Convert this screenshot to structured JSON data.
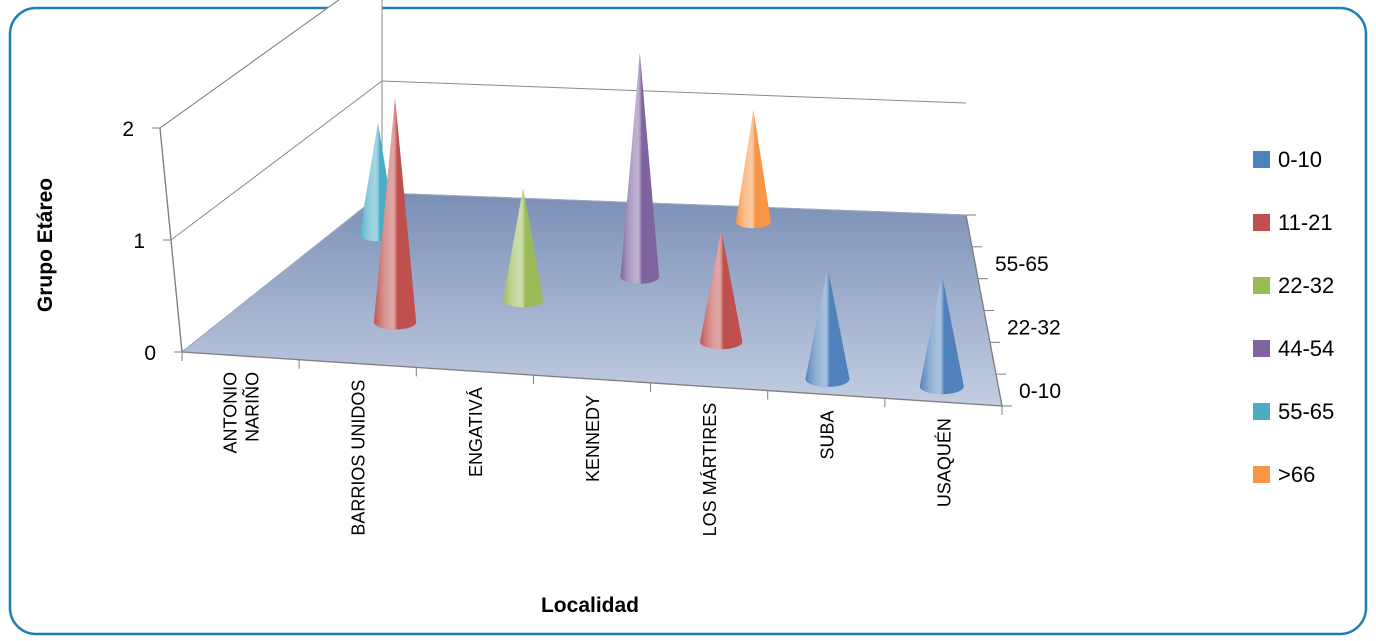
{
  "chart_data": {
    "type": "bar",
    "style": "3d-cone",
    "title": "",
    "xlabel": "Localidad",
    "ylabel": "Grupo Etáreo",
    "zlabel": "",
    "ylim": [
      0,
      2
    ],
    "y_ticks": [
      "0",
      "1",
      "2"
    ],
    "grid": true,
    "legend_position": "right",
    "categories": [
      "ANTONIO NARIÑO",
      "BARRIOS UNIDOS",
      "ENGATIVÁ",
      "KENNEDY",
      "LOS MÁRTIRES",
      "SUBA",
      "USAQUÉN"
    ],
    "category_tick_labels": [
      [
        "ANTONIO",
        "NARIÑO"
      ],
      [
        "BARRIOS UNIDOS"
      ],
      [
        "ENGATIVÁ"
      ],
      [
        "KENNEDY"
      ],
      [
        "LOS MÁRTIRES"
      ],
      [
        "SUBA"
      ],
      [
        "USAQUÉN"
      ]
    ],
    "depth_tick_labels": [
      "0-10",
      "22-32",
      "55-65"
    ],
    "series": [
      {
        "name": "0-10",
        "color": "#4f81bd",
        "values": [
          0,
          0,
          0,
          0,
          0,
          1,
          1
        ]
      },
      {
        "name": "11-21",
        "color": "#c0504d",
        "values": [
          0,
          2,
          0,
          0,
          1,
          0,
          0
        ]
      },
      {
        "name": "22-32",
        "color": "#9bbb59",
        "values": [
          0,
          0,
          1,
          0,
          0,
          0,
          0
        ]
      },
      {
        "name": "44-54",
        "color": "#8064a2",
        "values": [
          0,
          0,
          0,
          2,
          0,
          0,
          0
        ]
      },
      {
        "name": "55-65",
        "color": "#4bacc6",
        "values": [
          1,
          0,
          0,
          0,
          0,
          0,
          0
        ]
      },
      {
        "name": ">66",
        "color": "#f79646",
        "values": [
          0,
          0,
          0,
          0,
          1,
          0,
          0
        ]
      }
    ]
  }
}
